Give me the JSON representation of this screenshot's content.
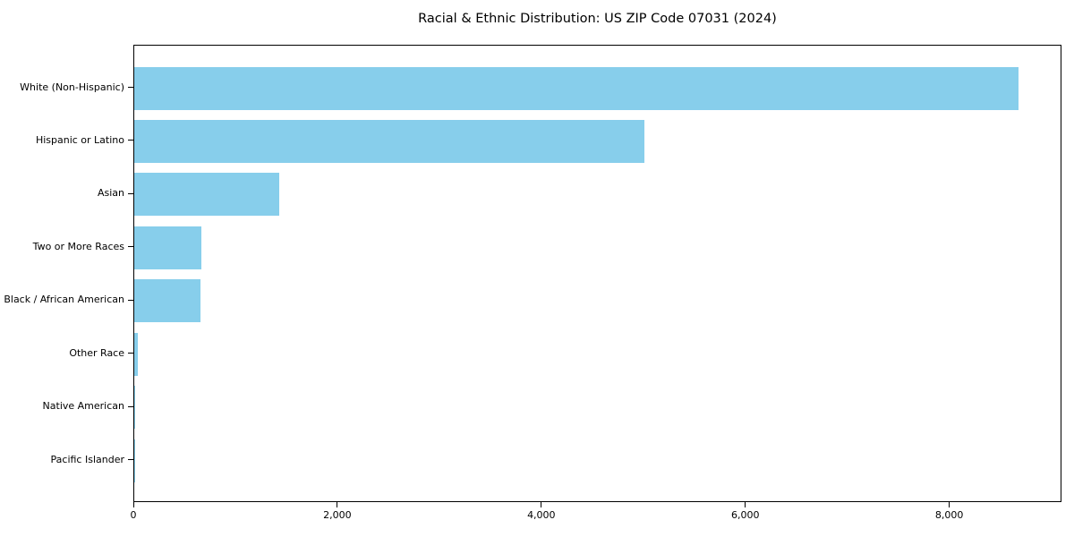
{
  "title": "Racial & Ethnic Distribution: US ZIP Code 07031 (2024)",
  "chart_data": {
    "type": "bar",
    "orientation": "horizontal",
    "title": "Racial & Ethnic Distribution: US ZIP Code 07031 (2024)",
    "categories": [
      "White (Non-Hispanic)",
      "Hispanic or Latino",
      "Asian",
      "Two or More Races",
      "Black / African American",
      "Other Race",
      "Native American",
      "Pacific Islander"
    ],
    "values": [
      8670,
      5000,
      1425,
      655,
      650,
      35,
      8,
      3
    ],
    "xlabel": "",
    "ylabel": "",
    "xlim": [
      0,
      9100
    ],
    "x_ticks": [
      0,
      2000,
      4000,
      6000,
      8000
    ],
    "x_tick_labels": [
      "0",
      "2,000",
      "4,000",
      "6,000",
      "8,000"
    ],
    "grid": false,
    "legend": false,
    "bar_color": "#87CEEB",
    "axis_color": "#000000",
    "background_color": "#ffffff"
  }
}
